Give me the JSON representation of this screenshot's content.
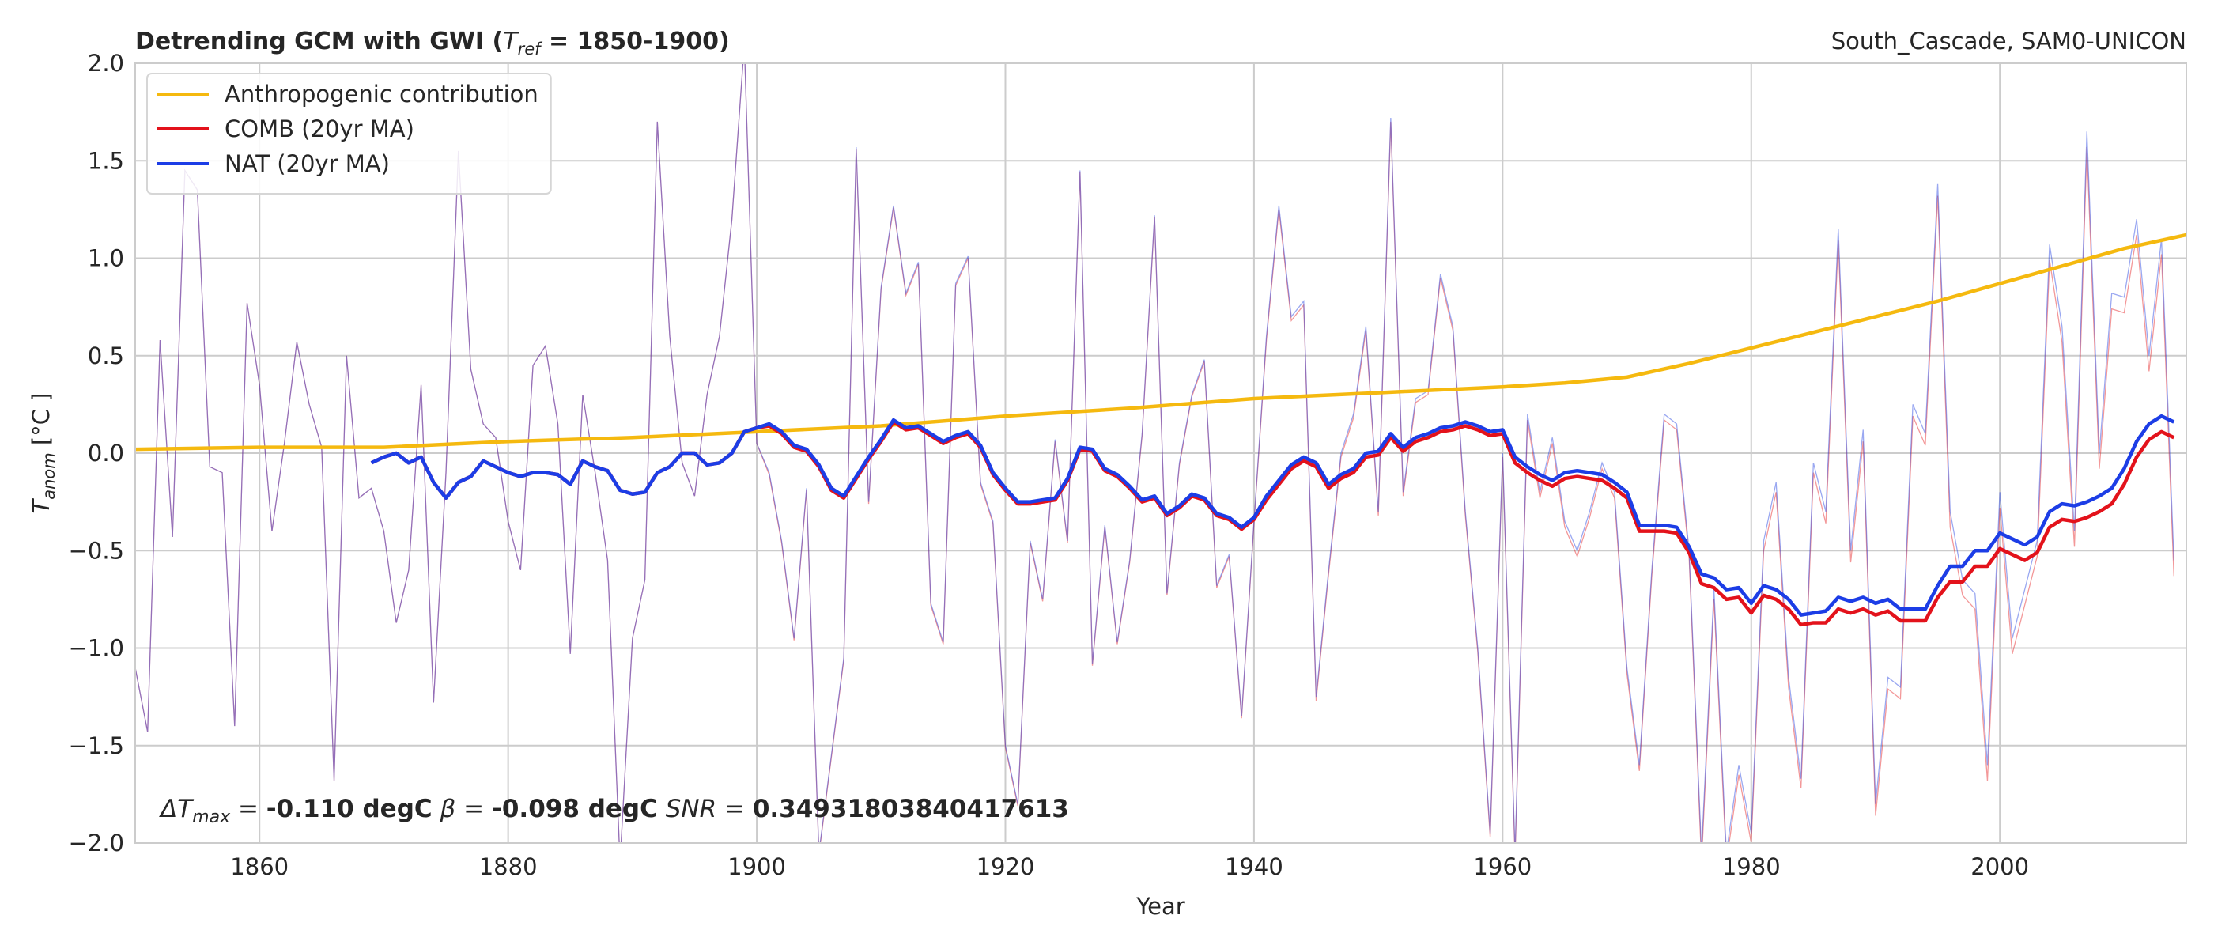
{
  "chart_data": {
    "type": "line",
    "title_parts": [
      "Detrending GCM with GWI (",
      "T",
      "ref",
      " = 1850-1900)"
    ],
    "subtitle": "South_Cascade, SAM0-UNICON",
    "x_label": "Year",
    "y_label_parts": [
      "T",
      "anom",
      " [°C ]"
    ],
    "annotation_parts": [
      "ΔT",
      "max",
      " = ",
      "-0.110 degC",
      " β",
      " = ",
      "-0.098 degC",
      " SNR",
      " = ",
      " 0.34931803840417613"
    ],
    "legend": "upper left",
    "grid": true,
    "xlim": [
      1850,
      2015
    ],
    "ylim": [
      -2.0,
      2.0
    ],
    "xticks": [
      1860,
      1880,
      1900,
      1920,
      1940,
      1960,
      1980,
      2000
    ],
    "yticks": [
      {
        "value": -2.0,
        "label": "−2.0"
      },
      {
        "value": -1.5,
        "label": "−1.5"
      },
      {
        "value": -1.0,
        "label": "−1.0"
      },
      {
        "value": -0.5,
        "label": "−0.5"
      },
      {
        "value": 0.0,
        "label": "0.0"
      },
      {
        "value": 0.5,
        "label": "0.5"
      },
      {
        "value": 1.0,
        "label": "1.0"
      },
      {
        "value": 1.5,
        "label": "1.5"
      },
      {
        "value": 2.0,
        "label": "2.0"
      }
    ],
    "x": [
      1850,
      1851,
      1852,
      1853,
      1854,
      1855,
      1856,
      1857,
      1858,
      1859,
      1860,
      1861,
      1862,
      1863,
      1864,
      1865,
      1866,
      1867,
      1868,
      1869,
      1870,
      1871,
      1872,
      1873,
      1874,
      1875,
      1876,
      1877,
      1878,
      1879,
      1880,
      1881,
      1882,
      1883,
      1884,
      1885,
      1886,
      1887,
      1888,
      1889,
      1890,
      1891,
      1892,
      1893,
      1894,
      1895,
      1896,
      1897,
      1898,
      1899,
      1900,
      1901,
      1902,
      1903,
      1904,
      1905,
      1906,
      1907,
      1908,
      1909,
      1910,
      1911,
      1912,
      1913,
      1914,
      1915,
      1916,
      1917,
      1918,
      1919,
      1920,
      1921,
      1922,
      1923,
      1924,
      1925,
      1926,
      1927,
      1928,
      1929,
      1930,
      1931,
      1932,
      1933,
      1934,
      1935,
      1936,
      1937,
      1938,
      1939,
      1940,
      1941,
      1942,
      1943,
      1944,
      1945,
      1946,
      1947,
      1948,
      1949,
      1950,
      1951,
      1952,
      1953,
      1954,
      1955,
      1956,
      1957,
      1958,
      1959,
      1960,
      1961,
      1962,
      1963,
      1964,
      1965,
      1966,
      1967,
      1968,
      1969,
      1970,
      1971,
      1972,
      1973,
      1974,
      1975,
      1976,
      1977,
      1978,
      1979,
      1980,
      1981,
      1982,
      1983,
      1984,
      1985,
      1986,
      1987,
      1988,
      1989,
      1990,
      1991,
      1992,
      1993,
      1994,
      1995,
      1996,
      1997,
      1998,
      1999,
      2000,
      2001,
      2002,
      2003,
      2004,
      2005,
      2006,
      2007,
      2008,
      2009,
      2010,
      2011,
      2012,
      2013,
      2014
    ],
    "series": [
      {
        "color": "#e41a1c",
        "values": [
          -1.1,
          -1.43,
          0.58,
          -0.43,
          1.45,
          1.35,
          -0.07,
          -0.1,
          -1.4,
          0.77,
          0.35,
          -0.4,
          0.05,
          0.57,
          0.25,
          0.03,
          -1.68,
          0.5,
          -0.23,
          -0.18,
          -0.4,
          -0.87,
          -0.6,
          0.35,
          -1.28,
          -0.1,
          1.55,
          0.43,
          0.15,
          0.08,
          -0.35,
          -0.6,
          0.45,
          0.55,
          0.15,
          -1.03,
          0.3,
          -0.1,
          -0.55,
          -2.1,
          -0.95,
          -0.65,
          1.7,
          0.6,
          -0.05,
          -0.22,
          0.3,
          0.6,
          1.2,
          2.1,
          0.05,
          -0.11,
          -0.46,
          -0.96,
          -0.19,
          -2.06,
          -1.56,
          -1.06,
          1.56,
          -0.26,
          0.84,
          1.26,
          0.81,
          0.97,
          -0.78,
          -0.98,
          0.86,
          1.0,
          -0.16,
          -0.36,
          -1.51,
          -1.81,
          -0.46,
          -0.76,
          0.06,
          -0.46,
          1.44,
          -1.09,
          -0.38,
          -0.98,
          -0.56,
          0.09,
          1.21,
          -0.73,
          -0.06,
          0.29,
          0.47,
          -0.69,
          -0.53,
          -1.36,
          -0.36,
          0.58,
          1.25,
          0.68,
          0.76,
          -1.27,
          -0.62,
          -0.02,
          0.18,
          0.63,
          -0.32,
          1.7,
          -0.22,
          0.26,
          0.3,
          0.9,
          0.63,
          -0.32,
          -1.02,
          -1.97,
          -0.02,
          -2.08,
          0.17,
          -0.23,
          0.05,
          -0.38,
          -0.53,
          -0.33,
          -0.08,
          -0.23,
          -1.13,
          -1.63,
          -0.63,
          0.17,
          0.12,
          -0.53,
          -2.1,
          -0.75,
          -2.1,
          -1.65,
          -2.0,
          -0.5,
          -0.2,
          -1.2,
          -1.72,
          -0.1,
          -0.36,
          1.09,
          -0.56,
          0.06,
          -1.86,
          -1.21,
          -1.26,
          0.19,
          0.04,
          1.32,
          -0.38,
          -0.73,
          -0.8,
          -1.68,
          -0.28,
          -1.03,
          -0.78,
          -0.53,
          0.99,
          0.57,
          -0.48,
          1.57,
          -0.08,
          0.74,
          0.72,
          1.12,
          0.42,
          1.02,
          -0.63
        ]
      },
      {
        "color": "#1f3fe0",
        "values": [
          -1.1,
          -1.43,
          0.58,
          -0.43,
          1.45,
          1.35,
          -0.07,
          -0.1,
          -1.4,
          0.77,
          0.35,
          -0.4,
          0.05,
          0.57,
          0.25,
          0.03,
          -1.68,
          0.5,
          -0.23,
          -0.18,
          -0.4,
          -0.87,
          -0.6,
          0.35,
          -1.28,
          -0.1,
          1.55,
          0.43,
          0.15,
          0.08,
          -0.35,
          -0.6,
          0.45,
          0.55,
          0.15,
          -1.03,
          0.3,
          -0.1,
          -0.55,
          -2.1,
          -0.95,
          -0.65,
          1.7,
          0.6,
          -0.05,
          -0.22,
          0.3,
          0.6,
          1.2,
          2.1,
          0.05,
          -0.1,
          -0.45,
          -0.95,
          -0.18,
          -2.05,
          -1.55,
          -1.05,
          1.57,
          -0.25,
          0.85,
          1.27,
          0.82,
          0.98,
          -0.77,
          -0.97,
          0.87,
          1.01,
          -0.15,
          -0.35,
          -1.5,
          -1.8,
          -0.45,
          -0.75,
          0.07,
          -0.45,
          1.45,
          -1.08,
          -0.37,
          -0.97,
          -0.55,
          0.1,
          1.22,
          -0.72,
          -0.05,
          0.3,
          0.48,
          -0.68,
          -0.52,
          -1.35,
          -0.35,
          0.6,
          1.27,
          0.7,
          0.78,
          -1.25,
          -0.6,
          0.0,
          0.2,
          0.65,
          -0.3,
          1.72,
          -0.2,
          0.28,
          0.32,
          0.92,
          0.65,
          -0.3,
          -1.0,
          -1.95,
          0.0,
          -2.05,
          0.2,
          -0.2,
          0.08,
          -0.35,
          -0.5,
          -0.3,
          -0.05,
          -0.2,
          -1.1,
          -1.6,
          -0.6,
          0.2,
          0.15,
          -0.5,
          -2.05,
          -0.7,
          -2.05,
          -1.6,
          -1.95,
          -0.45,
          -0.15,
          -1.15,
          -1.67,
          -0.05,
          -0.3,
          1.15,
          -0.5,
          0.12,
          -1.8,
          -1.15,
          -1.2,
          0.25,
          0.1,
          1.38,
          -0.3,
          -0.65,
          -0.72,
          -1.6,
          -0.2,
          -0.95,
          -0.7,
          -0.45,
          1.07,
          0.65,
          -0.4,
          1.65,
          0.0,
          0.82,
          0.8,
          1.2,
          0.5,
          1.1,
          -0.55
        ]
      },
      {
        "name": "Anthropogenic contribution",
        "color": "#f5b90f",
        "x": [
          1850,
          1860,
          1870,
          1880,
          1890,
          1900,
          1910,
          1920,
          1930,
          1940,
          1950,
          1960,
          1965,
          1970,
          1975,
          1980,
          1985,
          1990,
          1995,
          2000,
          2005,
          2010,
          2015
        ],
        "values": [
          0.02,
          0.03,
          0.03,
          0.06,
          0.08,
          0.11,
          0.14,
          0.19,
          0.23,
          0.28,
          0.31,
          0.34,
          0.36,
          0.39,
          0.46,
          0.54,
          0.62,
          0.7,
          0.78,
          0.87,
          0.96,
          1.05,
          1.12
        ]
      },
      {
        "name": "COMB (20yr MA)",
        "color": "#e3121b",
        "values": [
          null,
          null,
          null,
          null,
          null,
          null,
          null,
          null,
          null,
          null,
          null,
          null,
          null,
          null,
          null,
          null,
          null,
          null,
          null,
          -0.05,
          -0.02,
          0.0,
          -0.05,
          -0.02,
          -0.15,
          -0.23,
          -0.15,
          -0.12,
          -0.04,
          -0.07,
          -0.1,
          -0.12,
          -0.1,
          -0.1,
          -0.11,
          -0.16,
          -0.04,
          -0.07,
          -0.09,
          -0.19,
          -0.21,
          -0.2,
          -0.1,
          -0.07,
          0.0,
          0.0,
          -0.06,
          -0.05,
          0.0,
          0.11,
          0.13,
          0.14,
          0.1,
          0.03,
          0.01,
          -0.07,
          -0.19,
          -0.23,
          -0.13,
          -0.03,
          0.06,
          0.16,
          0.12,
          0.13,
          0.09,
          0.05,
          0.08,
          0.1,
          0.03,
          -0.11,
          -0.19,
          -0.26,
          -0.26,
          -0.25,
          -0.24,
          -0.14,
          0.02,
          0.01,
          -0.09,
          -0.12,
          -0.18,
          -0.25,
          -0.23,
          -0.32,
          -0.28,
          -0.22,
          -0.24,
          -0.32,
          -0.34,
          -0.39,
          -0.34,
          -0.24,
          -0.16,
          -0.08,
          -0.04,
          -0.07,
          -0.18,
          -0.13,
          -0.1,
          -0.02,
          -0.01,
          0.08,
          0.01,
          0.06,
          0.08,
          0.11,
          0.12,
          0.14,
          0.12,
          0.09,
          0.1,
          -0.05,
          -0.1,
          -0.14,
          -0.17,
          -0.13,
          -0.12,
          -0.13,
          -0.14,
          -0.18,
          -0.23,
          -0.4,
          -0.4,
          -0.4,
          -0.41,
          -0.51,
          -0.67,
          -0.69,
          -0.75,
          -0.74,
          -0.82,
          -0.73,
          -0.75,
          -0.8,
          -0.88,
          -0.87,
          -0.87,
          -0.8,
          -0.82,
          -0.8,
          -0.83,
          -0.81,
          -0.86,
          -0.86,
          -0.86,
          -0.74,
          -0.66,
          -0.66,
          -0.58,
          -0.58,
          -0.49,
          -0.52,
          -0.55,
          -0.51,
          -0.38,
          -0.34,
          -0.35,
          -0.33,
          -0.3,
          -0.26,
          -0.16,
          -0.02,
          0.07,
          0.11,
          0.08
        ]
      },
      {
        "name": "NAT (20yr MA)",
        "color": "#1c3de6",
        "values": [
          null,
          null,
          null,
          null,
          null,
          null,
          null,
          null,
          null,
          null,
          null,
          null,
          null,
          null,
          null,
          null,
          null,
          null,
          null,
          -0.05,
          -0.02,
          0.0,
          -0.05,
          -0.02,
          -0.15,
          -0.23,
          -0.15,
          -0.12,
          -0.04,
          -0.07,
          -0.1,
          -0.12,
          -0.1,
          -0.1,
          -0.11,
          -0.16,
          -0.04,
          -0.07,
          -0.09,
          -0.19,
          -0.21,
          -0.2,
          -0.1,
          -0.07,
          0.0,
          0.0,
          -0.06,
          -0.05,
          0.0,
          0.11,
          0.13,
          0.15,
          0.11,
          0.04,
          0.02,
          -0.06,
          -0.18,
          -0.22,
          -0.12,
          -0.02,
          0.07,
          0.17,
          0.13,
          0.14,
          0.1,
          0.06,
          0.09,
          0.11,
          0.04,
          -0.1,
          -0.18,
          -0.25,
          -0.25,
          -0.24,
          -0.23,
          -0.13,
          0.03,
          0.02,
          -0.08,
          -0.11,
          -0.17,
          -0.24,
          -0.22,
          -0.31,
          -0.27,
          -0.21,
          -0.23,
          -0.31,
          -0.33,
          -0.38,
          -0.33,
          -0.22,
          -0.14,
          -0.06,
          -0.02,
          -0.05,
          -0.16,
          -0.11,
          -0.08,
          0.0,
          0.01,
          0.1,
          0.03,
          0.08,
          0.1,
          0.13,
          0.14,
          0.16,
          0.14,
          0.11,
          0.12,
          -0.02,
          -0.07,
          -0.11,
          -0.14,
          -0.1,
          -0.09,
          -0.1,
          -0.11,
          -0.15,
          -0.2,
          -0.37,
          -0.37,
          -0.37,
          -0.38,
          -0.48,
          -0.62,
          -0.64,
          -0.7,
          -0.69,
          -0.77,
          -0.68,
          -0.7,
          -0.75,
          -0.83,
          -0.82,
          -0.81,
          -0.74,
          -0.76,
          -0.74,
          -0.77,
          -0.75,
          -0.8,
          -0.8,
          -0.8,
          -0.68,
          -0.58,
          -0.58,
          -0.5,
          -0.5,
          -0.41,
          -0.44,
          -0.47,
          -0.43,
          -0.3,
          -0.26,
          -0.27,
          -0.25,
          -0.22,
          -0.18,
          -0.08,
          0.06,
          0.15,
          0.19,
          0.16
        ]
      }
    ]
  }
}
